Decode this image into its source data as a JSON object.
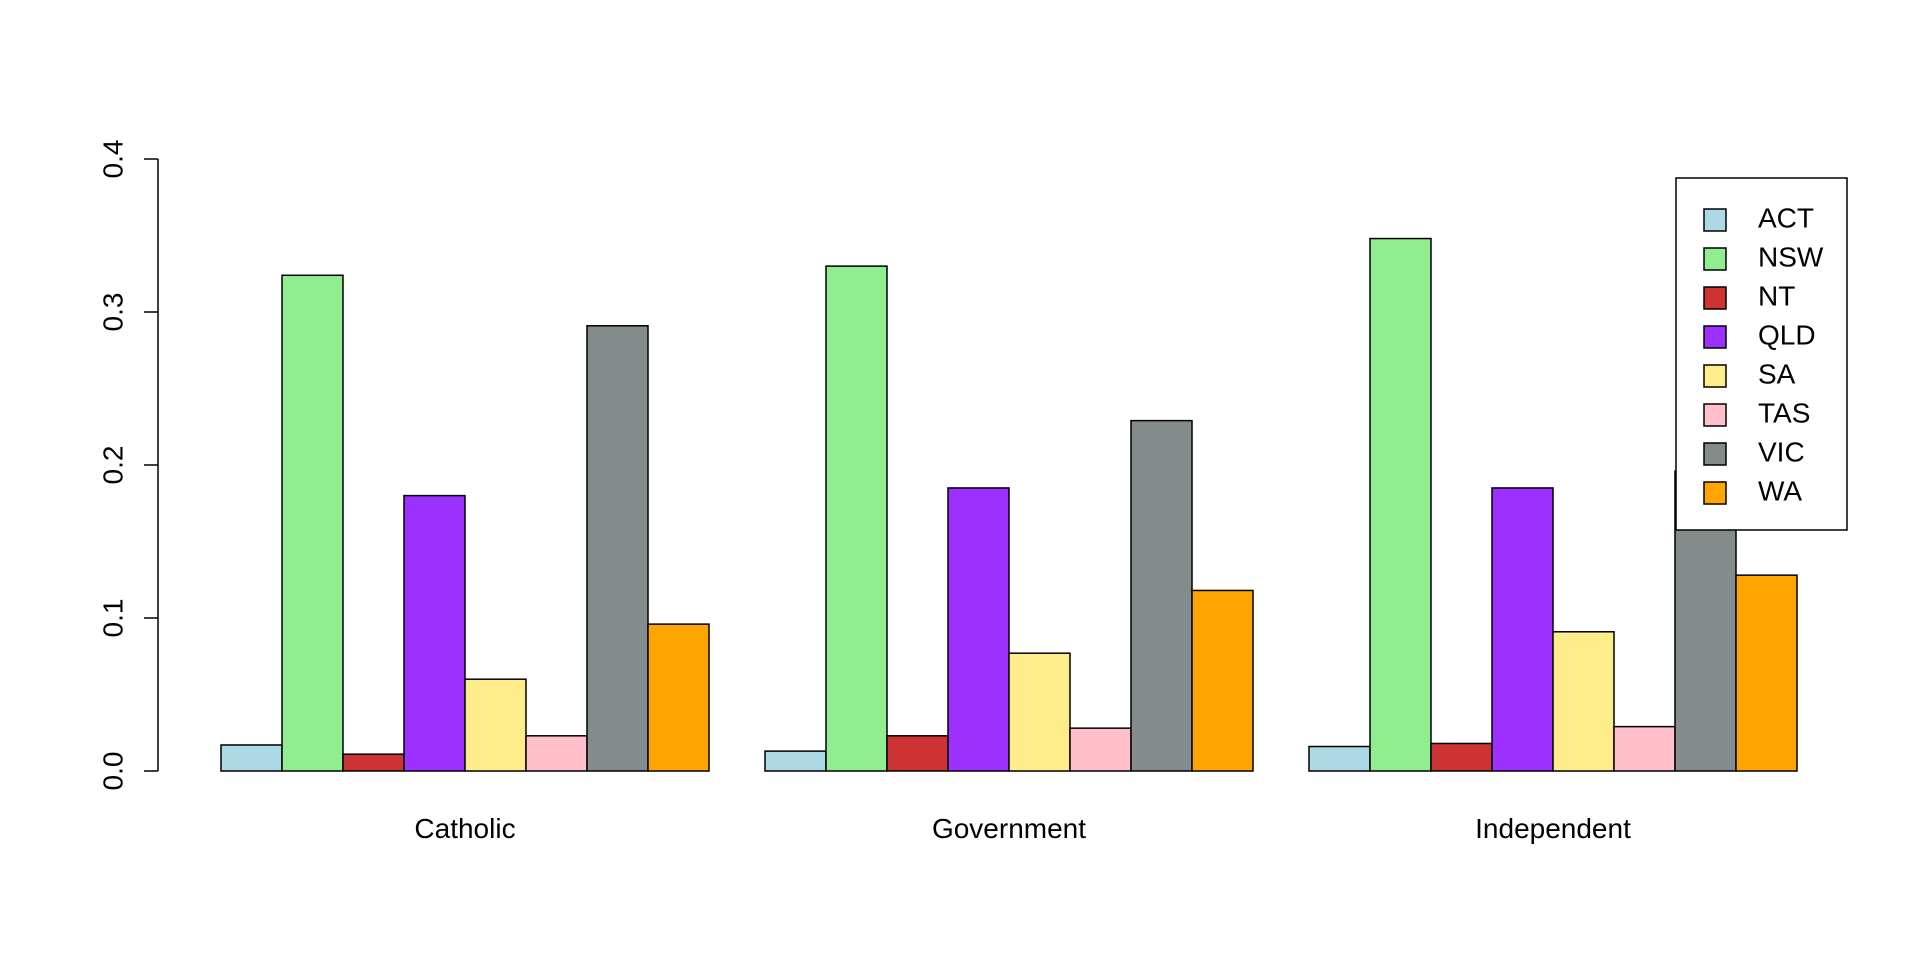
{
  "chart_data": {
    "type": "bar",
    "title": "",
    "xlabel": "",
    "ylabel": "",
    "categories": [
      "Catholic",
      "Government",
      "Independent"
    ],
    "ylim": [
      0,
      0.4
    ],
    "yticks": [
      "0.0",
      "0.1",
      "0.2",
      "0.3",
      "0.4"
    ],
    "grid": false,
    "legend_position": "top-right",
    "series": [
      {
        "name": "ACT",
        "color": "#add8e6",
        "values": [
          0.017,
          0.013,
          0.016
        ]
      },
      {
        "name": "NSW",
        "color": "#90ee90",
        "values": [
          0.324,
          0.33,
          0.348
        ]
      },
      {
        "name": "NT",
        "color": "#cd3333",
        "values": [
          0.011,
          0.023,
          0.018
        ]
      },
      {
        "name": "QLD",
        "color": "#9b30ff",
        "values": [
          0.18,
          0.185,
          0.185
        ]
      },
      {
        "name": "SA",
        "color": "#ffec8b",
        "values": [
          0.06,
          0.077,
          0.091
        ]
      },
      {
        "name": "TAS",
        "color": "#ffc0cb",
        "values": [
          0.023,
          0.028,
          0.029
        ]
      },
      {
        "name": "VIC",
        "color": "#838b8b",
        "values": [
          0.291,
          0.229,
          0.196
        ]
      },
      {
        "name": "WA",
        "color": "#ffa500",
        "values": [
          0.096,
          0.118,
          0.128
        ]
      }
    ]
  }
}
